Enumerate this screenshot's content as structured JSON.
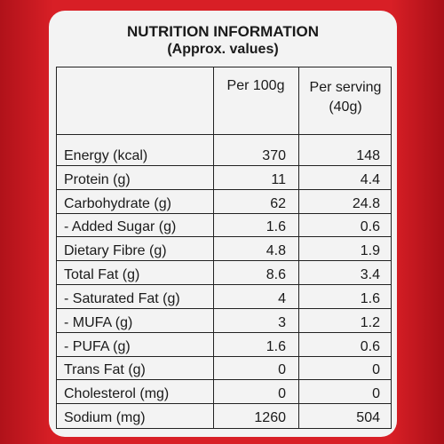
{
  "header": {
    "title": "NUTRITION INFORMATION",
    "subtitle": "(Approx. values)"
  },
  "table": {
    "columns": [
      "Per 100g",
      "Per serving (40g)"
    ],
    "rows": [
      [
        "Energy (kcal)",
        "370",
        "148"
      ],
      [
        "Protein (g)",
        "11",
        "4.4"
      ],
      [
        "Carbohydrate (g)",
        "62",
        "24.8"
      ],
      [
        "- Added Sugar (g)",
        "1.6",
        "0.6"
      ],
      [
        "Dietary Fibre (g)",
        "4.8",
        "1.9"
      ],
      [
        "Total Fat (g)",
        "8.6",
        "3.4"
      ],
      [
        "- Saturated Fat (g)",
        "4",
        "1.6"
      ],
      [
        "- MUFA (g)",
        "3",
        "1.2"
      ],
      [
        "- PUFA (g)",
        "1.6",
        "0.6"
      ],
      [
        "Trans Fat (g)",
        "0",
        "0"
      ],
      [
        "Cholesterol (mg)",
        "0",
        "0"
      ],
      [
        "Sodium (mg)",
        "1260",
        "504"
      ]
    ]
  }
}
